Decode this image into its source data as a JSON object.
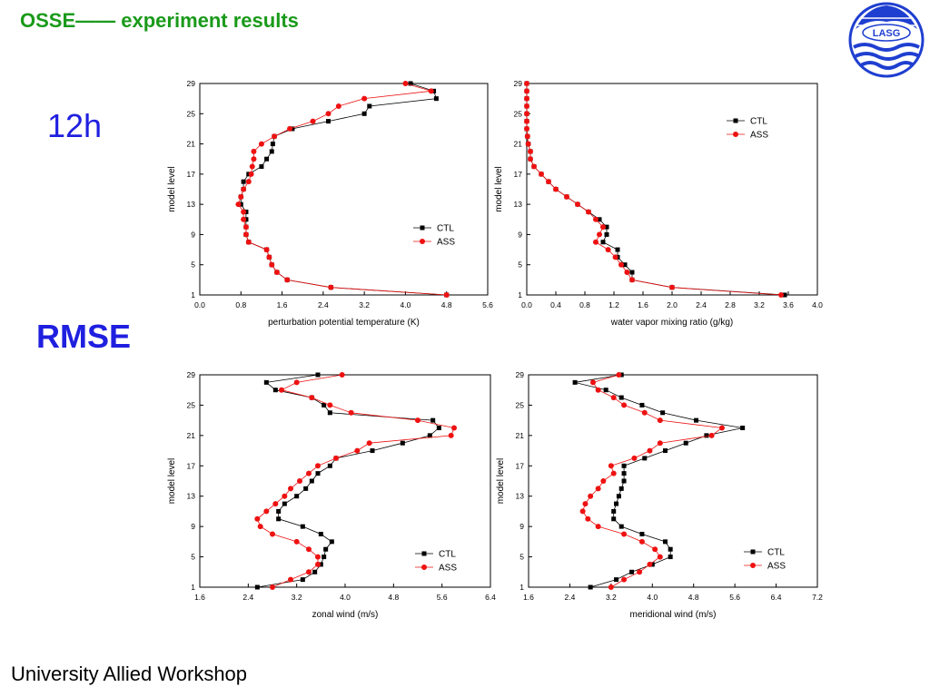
{
  "header": {
    "title": "OSSE—— experiment results"
  },
  "labels": {
    "lead_time": "12h",
    "metric": "RMSE"
  },
  "footer": {
    "text": "University Allied Workshop"
  },
  "logo": {
    "text": "LASG",
    "icon": "lasg-logo-icon",
    "color": "#1f3fd0"
  },
  "colors": {
    "ctl": "#000000",
    "ass": "#ee1111"
  },
  "chart_data": [
    {
      "type": "line",
      "xlabel": "perturbation potential temperature (K)",
      "ylabel": "model level",
      "xlim": [
        0.0,
        5.6
      ],
      "xticks": [
        "0.0",
        "0.8",
        "1.6",
        "2.4",
        "3.2",
        "4.0",
        "4.8",
        "5.6"
      ],
      "ylim": [
        1,
        29
      ],
      "yticks": [
        "1",
        "5",
        "9",
        "13",
        "17",
        "21",
        "25",
        "29"
      ],
      "legend": "center-right",
      "y": [
        1,
        2,
        3,
        4,
        5,
        6,
        7,
        8,
        9,
        10,
        11,
        12,
        13,
        14,
        15,
        16,
        17,
        18,
        19,
        20,
        21,
        22,
        23,
        24,
        25,
        26,
        27,
        28,
        29
      ],
      "series": [
        {
          "name": "CTL",
          "marker": "square",
          "values": [
            4.8,
            2.55,
            1.7,
            1.5,
            1.4,
            1.35,
            1.3,
            0.95,
            0.9,
            0.9,
            0.9,
            0.9,
            0.8,
            0.8,
            0.85,
            0.85,
            0.95,
            1.2,
            1.3,
            1.4,
            1.42,
            1.45,
            1.8,
            2.5,
            3.2,
            3.3,
            4.6,
            4.55,
            4.1
          ]
        },
        {
          "name": "ASS",
          "marker": "circle",
          "values": [
            4.8,
            2.55,
            1.7,
            1.5,
            1.4,
            1.35,
            1.3,
            0.95,
            0.9,
            0.9,
            0.85,
            0.85,
            0.75,
            0.8,
            0.85,
            0.95,
            1.0,
            1.02,
            1.05,
            1.05,
            1.2,
            1.45,
            1.75,
            2.2,
            2.5,
            2.7,
            3.2,
            4.5,
            4.0
          ]
        }
      ]
    },
    {
      "type": "line",
      "xlabel": "water vapor mixing ratio (g/kg)",
      "ylabel": "model level",
      "xlim": [
        0.0,
        4.0
      ],
      "xticks": [
        "0.0",
        "0.4",
        "0.8",
        "1.2",
        "1.6",
        "2.0",
        "2.4",
        "2.8",
        "3.2",
        "3.6",
        "4.0"
      ],
      "ylim": [
        1,
        29
      ],
      "yticks": [
        "1",
        "5",
        "9",
        "13",
        "17",
        "21",
        "25",
        "29"
      ],
      "legend": "top-right",
      "y": [
        1,
        2,
        3,
        4,
        5,
        6,
        7,
        8,
        9,
        10,
        11,
        12,
        13,
        14,
        15,
        16,
        17,
        18,
        19,
        20,
        21,
        22,
        23,
        24,
        25,
        26,
        27,
        28,
        29
      ],
      "series": [
        {
          "name": "CTL",
          "marker": "square",
          "values": [
            3.55,
            2.0,
            1.45,
            1.45,
            1.35,
            1.25,
            1.25,
            1.05,
            1.1,
            1.1,
            1.0,
            0.85,
            0.7,
            0.55,
            0.4,
            0.3,
            0.2,
            0.1,
            0.05,
            0.05,
            0.02,
            0.01,
            0.0,
            0.0,
            0.0,
            0.0,
            0.0,
            0.0,
            0.0
          ]
        },
        {
          "name": "ASS",
          "marker": "circle",
          "values": [
            3.5,
            2.0,
            1.45,
            1.38,
            1.3,
            1.22,
            1.12,
            0.95,
            1.0,
            1.05,
            0.95,
            0.85,
            0.7,
            0.55,
            0.4,
            0.3,
            0.2,
            0.1,
            0.05,
            0.05,
            0.02,
            0.01,
            0.0,
            0.0,
            0.0,
            0.0,
            0.0,
            0.0,
            0.0
          ]
        }
      ]
    },
    {
      "type": "line",
      "xlabel": "zonal wind (m/s)",
      "ylabel": "model level",
      "xlim": [
        1.6,
        6.4
      ],
      "xticks": [
        "1.6",
        "2.4",
        "3.2",
        "4.0",
        "4.8",
        "5.6",
        "6.4"
      ],
      "ylim": [
        1,
        29
      ],
      "yticks": [
        "1",
        "5",
        "9",
        "13",
        "17",
        "21",
        "25",
        "29"
      ],
      "legend": "bottom-right",
      "y": [
        1,
        2,
        3,
        4,
        5,
        6,
        7,
        8,
        9,
        10,
        11,
        12,
        13,
        14,
        15,
        16,
        17,
        18,
        19,
        20,
        21,
        22,
        23,
        24,
        25,
        26,
        27,
        28,
        29
      ],
      "series": [
        {
          "name": "CTL",
          "marker": "square",
          "values": [
            2.55,
            3.3,
            3.5,
            3.6,
            3.65,
            3.68,
            3.78,
            3.6,
            3.3,
            2.9,
            2.9,
            3.0,
            3.2,
            3.35,
            3.45,
            3.55,
            3.75,
            3.85,
            4.45,
            4.95,
            5.4,
            5.55,
            5.45,
            3.75,
            3.65,
            3.45,
            2.85,
            2.7,
            3.55
          ]
        },
        {
          "name": "ASS",
          "marker": "circle",
          "values": [
            2.8,
            3.1,
            3.4,
            3.55,
            3.55,
            3.4,
            3.2,
            2.8,
            2.6,
            2.55,
            2.7,
            2.85,
            3.0,
            3.1,
            3.25,
            3.4,
            3.55,
            3.85,
            4.2,
            4.4,
            5.75,
            5.8,
            5.2,
            4.1,
            3.75,
            3.45,
            2.95,
            3.2,
            3.95
          ]
        }
      ]
    },
    {
      "type": "line",
      "xlabel": "meridional wind (m/s)",
      "ylabel": "model level",
      "xlim": [
        1.6,
        7.2
      ],
      "xticks": [
        "1.6",
        "2.4",
        "3.2",
        "4.0",
        "4.8",
        "5.6",
        "6.4",
        "7.2"
      ],
      "ylim": [
        1,
        29
      ],
      "yticks": [
        "1",
        "5",
        "9",
        "13",
        "17",
        "21",
        "25",
        "29"
      ],
      "legend": "bottom-right",
      "y": [
        1,
        2,
        3,
        4,
        5,
        6,
        7,
        8,
        9,
        10,
        11,
        12,
        13,
        14,
        15,
        16,
        17,
        18,
        19,
        20,
        21,
        22,
        23,
        24,
        25,
        26,
        27,
        28,
        29
      ],
      "series": [
        {
          "name": "CTL",
          "marker": "square",
          "values": [
            2.8,
            3.3,
            3.6,
            4.0,
            4.35,
            4.35,
            4.25,
            3.8,
            3.4,
            3.25,
            3.25,
            3.3,
            3.35,
            3.4,
            3.45,
            3.45,
            3.45,
            3.85,
            4.25,
            4.65,
            5.05,
            5.75,
            4.85,
            4.2,
            3.8,
            3.4,
            3.1,
            2.5,
            3.4
          ]
        },
        {
          "name": "ASS",
          "marker": "circle",
          "values": [
            3.2,
            3.45,
            3.75,
            3.95,
            4.15,
            4.05,
            3.8,
            3.45,
            2.95,
            2.75,
            2.65,
            2.7,
            2.8,
            2.95,
            3.05,
            3.25,
            3.2,
            3.65,
            3.95,
            4.15,
            5.15,
            5.35,
            4.15,
            3.85,
            3.45,
            3.25,
            2.95,
            2.85,
            3.35
          ]
        }
      ]
    }
  ]
}
